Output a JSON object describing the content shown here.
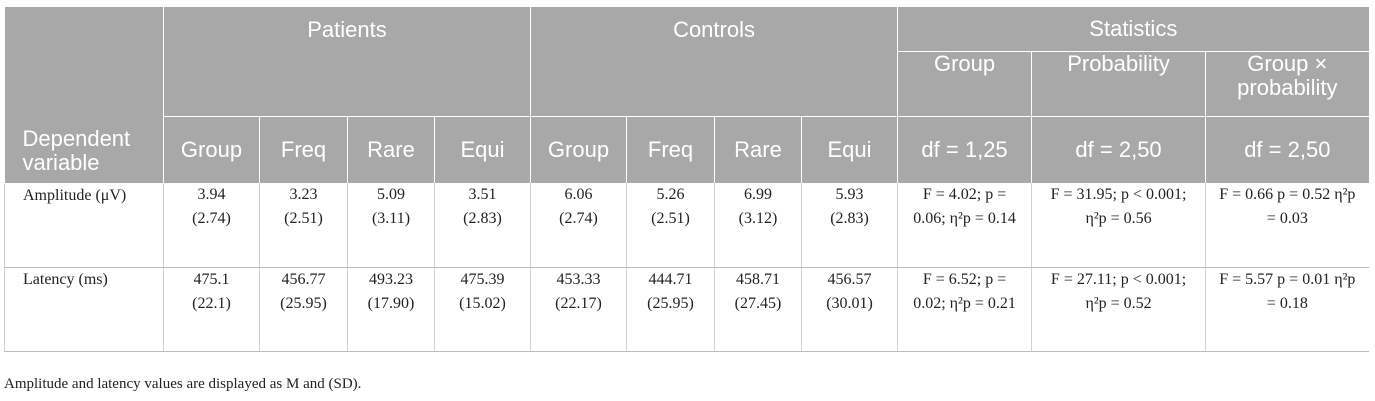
{
  "header": {
    "groups": {
      "patients": "Patients",
      "controls": "Controls",
      "statistics": "Statistics"
    },
    "stat_sub": {
      "group": "Group",
      "probability": "Probability",
      "interaction": "Group × probability"
    },
    "dependent_variable": "Dependent variable",
    "columns": [
      "Group",
      "Freq",
      "Rare",
      "Equi",
      "Group",
      "Freq",
      "Rare",
      "Equi"
    ],
    "df": [
      "df = 1,25",
      "df = 2,50",
      "df = 2,50"
    ]
  },
  "rows": [
    {
      "label": "Amplitude (μV)",
      "patients": [
        [
          "3.94",
          "(2.74)"
        ],
        [
          "3.23",
          "(2.51)"
        ],
        [
          "5.09",
          "(3.11)"
        ],
        [
          "3.51",
          "(2.83)"
        ]
      ],
      "controls": [
        [
          "6.06",
          "(2.74)"
        ],
        [
          "5.26",
          "(2.51)"
        ],
        [
          "6.99",
          "(3.12)"
        ],
        [
          "5.93",
          "(2.83)"
        ]
      ],
      "stats": [
        "F = 4.02; p = 0.06; η²p = 0.14",
        "F = 31.95; p < 0.001; η²p = 0.56",
        "F = 0.66 p = 0.52 η²p = 0.03"
      ]
    },
    {
      "label": "Latency (ms)",
      "patients": [
        [
          "475.1",
          "(22.1)"
        ],
        [
          "456.77",
          "(25.95)"
        ],
        [
          "493.23",
          "(17.90)"
        ],
        [
          "475.39",
          "(15.02)"
        ]
      ],
      "controls": [
        [
          "453.33",
          "(22.17)"
        ],
        [
          "444.71",
          "(25.95)"
        ],
        [
          "458.71",
          "(27.45)"
        ],
        [
          "456.57",
          "(30.01)"
        ]
      ],
      "stats": [
        "F = 6.52; p = 0.02; η²p = 0.21",
        "F = 27.11; p < 0.001; η²p = 0.52",
        "F = 5.57 p = 0.01 η²p = 0.18"
      ]
    }
  ],
  "footnote": "Amplitude and latency values are displayed as M and (SD)."
}
